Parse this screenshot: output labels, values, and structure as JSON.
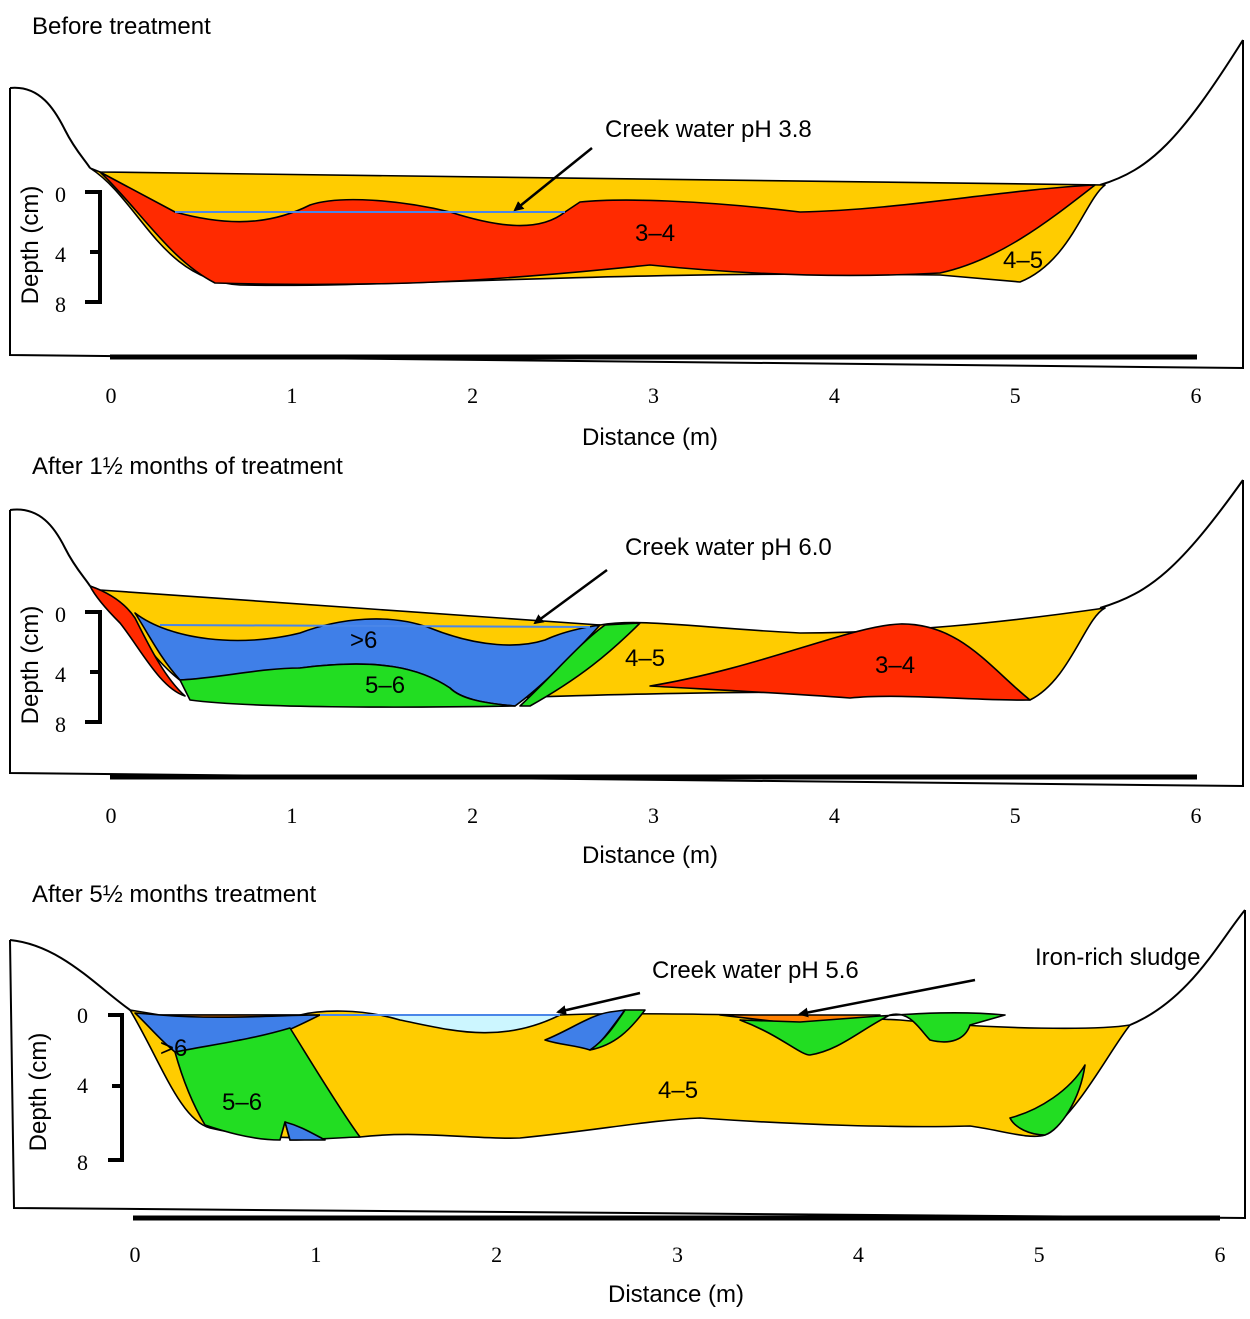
{
  "panels": [
    {
      "title": "Before treatment",
      "annotations": [
        "Creek water pH 3.8"
      ],
      "zone_labels": [
        "3–4",
        "4–5"
      ],
      "x_ticks": [
        "0",
        "1",
        "2",
        "3",
        "4",
        "5",
        "6"
      ],
      "depth_ticks": [
        "0",
        "4",
        "8"
      ],
      "x_label": "Distance (m)",
      "y_label": "Depth (cm)"
    },
    {
      "title": "After 1½ months of treatment",
      "annotations": [
        "Creek water pH 6.0"
      ],
      "zone_labels": [
        ">6",
        "5–6",
        "4–5",
        "3–4"
      ],
      "x_ticks": [
        "0",
        "1",
        "2",
        "3",
        "4",
        "5",
        "6"
      ],
      "depth_ticks": [
        "0",
        "4",
        "8"
      ],
      "x_label": "Distance (m)",
      "y_label": "Depth (cm)"
    },
    {
      "title": "After 5½ months treatment",
      "annotations": [
        "Creek water pH 5.6",
        "Iron-rich sludge"
      ],
      "zone_labels": [
        ">6",
        "5–6",
        "4–5"
      ],
      "x_ticks": [
        "0",
        "1",
        "2",
        "3",
        "4",
        "5",
        "6"
      ],
      "depth_ticks": [
        "0",
        "4",
        "8"
      ],
      "x_label": "Distance (m)",
      "y_label": "Depth (cm)"
    }
  ]
}
